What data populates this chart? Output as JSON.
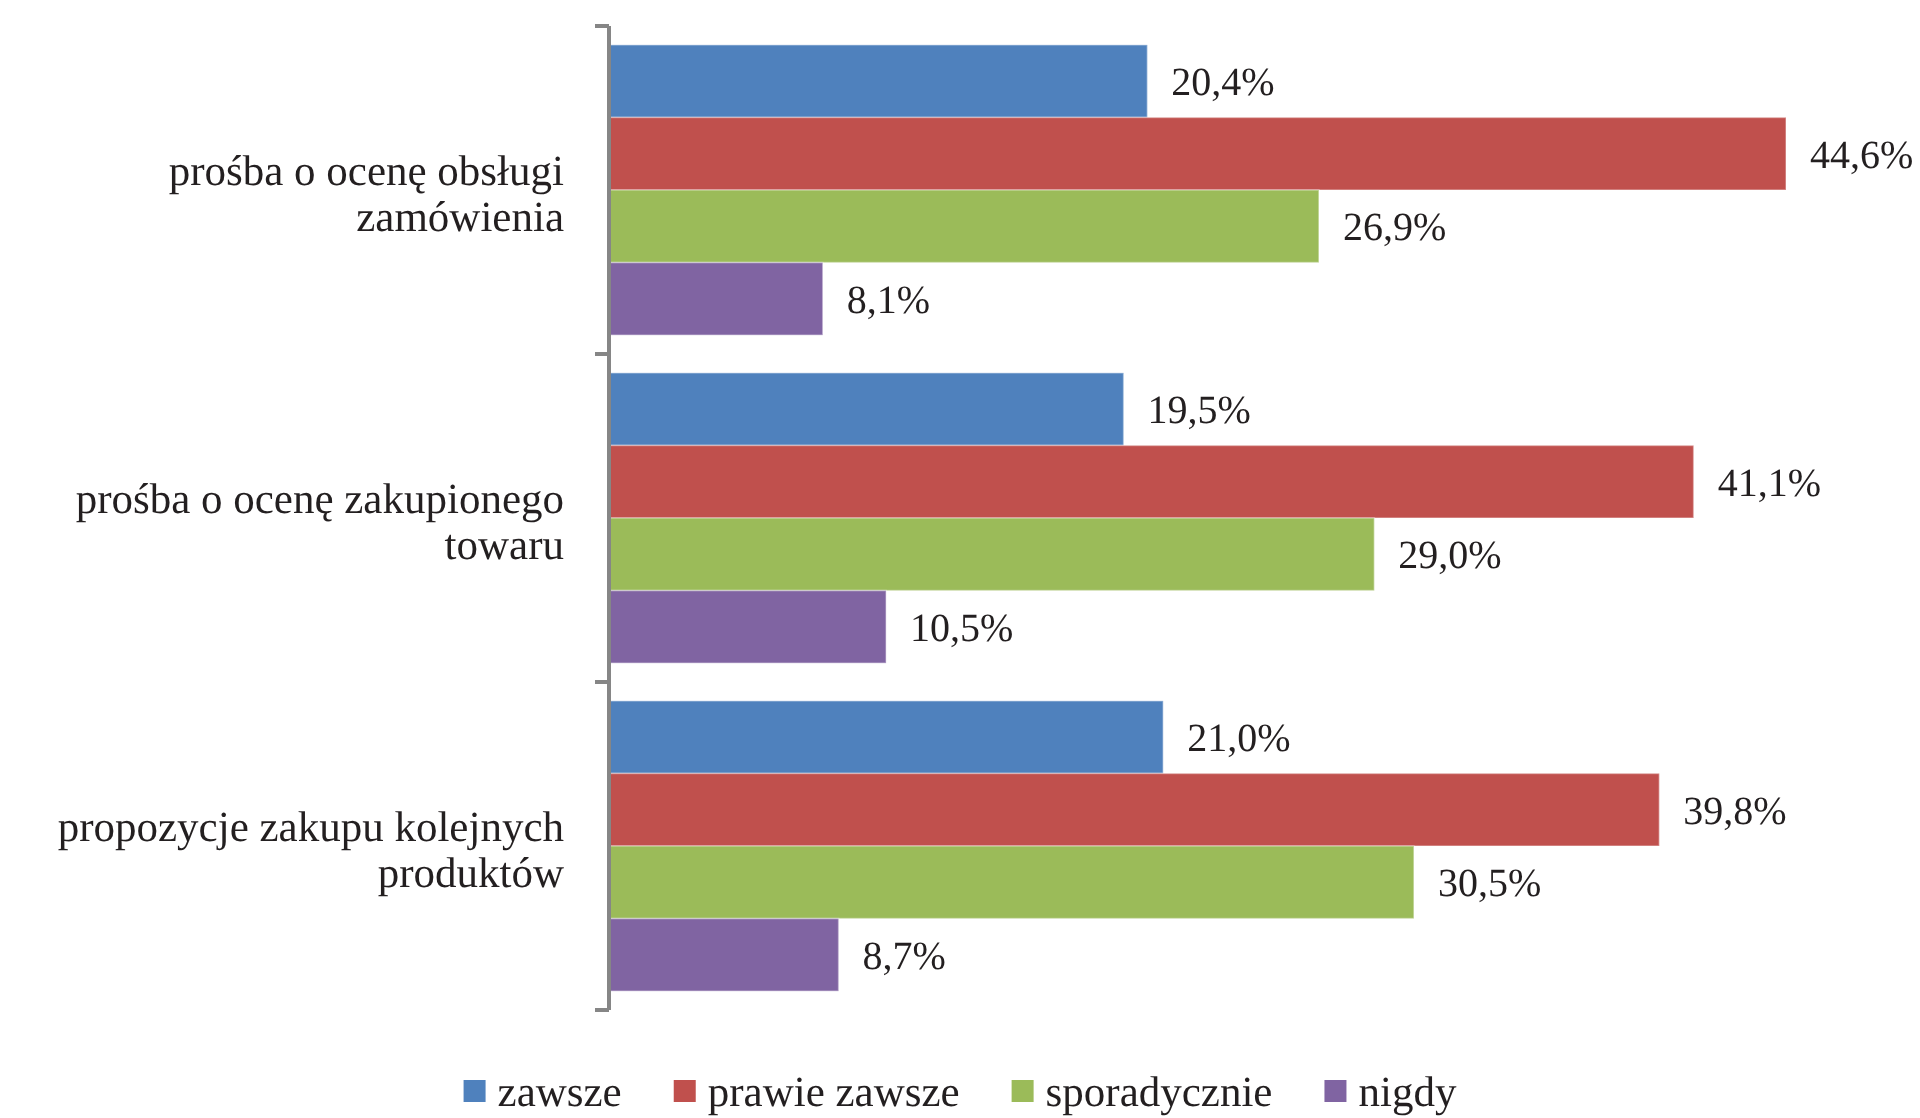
{
  "chart_data": {
    "type": "bar",
    "orientation": "horizontal",
    "categories": [
      "prośba o ocenę obsługi zamówienia",
      "prośba o ocenę zakupionego towaru",
      "propozycje zakupu kolejnych produktów"
    ],
    "series": [
      {
        "name": "zawsze",
        "color": "#4f81bd",
        "values": [
          20.4,
          19.5,
          21.0
        ],
        "value_labels": [
          "20,4%",
          "19,5%",
          "21,0%"
        ]
      },
      {
        "name": "prawie zawsze",
        "color": "#c0504d",
        "values": [
          44.6,
          41.1,
          39.8
        ],
        "value_labels": [
          "44,6%",
          "41,1%",
          "39,8%"
        ]
      },
      {
        "name": "sporadycznie",
        "color": "#9bbb59",
        "values": [
          26.9,
          29.0,
          30.5
        ],
        "value_labels": [
          "26,9%",
          "29,0%",
          "30,5%"
        ]
      },
      {
        "name": "nigdy",
        "color": "#8064a2",
        "values": [
          8.1,
          10.5,
          8.7
        ],
        "value_labels": [
          "8,1%",
          "10,5%",
          "8,7%"
        ]
      }
    ],
    "legend": "bottom"
  }
}
